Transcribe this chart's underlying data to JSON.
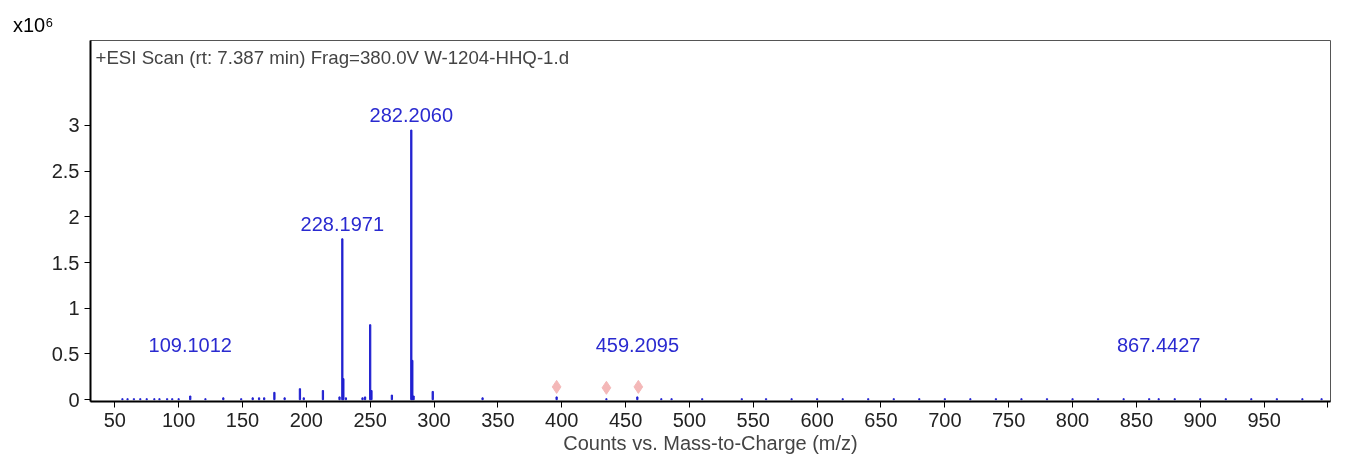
{
  "chart_data": {
    "type": "bar",
    "title": "+ESI Scan (rt: 7.387 min) Frag=380.0V W-1204-HHQ-1.d",
    "xlabel": "Counts vs. Mass-to-Charge (m/z)",
    "ylabel": "x10⁶",
    "xlim": [
      31,
      1002
    ],
    "ylim": [
      -0.02,
      3.93
    ],
    "xticks": [
      50,
      100,
      150,
      200,
      250,
      300,
      350,
      400,
      450,
      500,
      550,
      600,
      650,
      700,
      750,
      800,
      850,
      900,
      950,
      {
        "value": 1000,
        "label": null
      }
    ],
    "yticks": [
      0,
      0.5,
      1,
      1.5,
      2,
      2.5,
      3
    ],
    "grid": false,
    "annotations": [
      {
        "text": "109.1012",
        "x": 109.1012,
        "y": 0.04
      },
      {
        "text": "228.1971",
        "x": 228.1971,
        "y": 1.76
      },
      {
        "text": "282.2060",
        "x": 282.206,
        "y": 2.95
      },
      {
        "text": "459.2095",
        "x": 459.2095,
        "y": 0.03
      },
      {
        "text": "867.4427",
        "x": 867.4427,
        "y": 0.01
      }
    ],
    "series": [
      {
        "color": "#2020d0",
        "x": [
          56,
          60,
          65,
          70,
          75,
          81,
          85,
          91,
          95,
          100,
          109.1012,
          121,
          135,
          149,
          158,
          163,
          167,
          175,
          183,
          195,
          198,
          213,
          226,
          228.1971,
          229,
          231,
          244,
          246,
          250,
          251,
          267,
          282.206,
          283,
          284,
          299,
          338,
          396,
          435,
          459.2095,
          478,
          486,
          510,
          541,
          560,
          580,
          600,
          620,
          640,
          660,
          680,
          700,
          720,
          740,
          760,
          780,
          800,
          820,
          840,
          860,
          867.4427,
          880,
          900,
          920,
          940,
          960,
          980,
          995
        ],
        "values": [
          0.01,
          0.01,
          0.01,
          0.01,
          0.01,
          0.01,
          0.01,
          0.01,
          0.01,
          0.01,
          0.04,
          0.01,
          0.02,
          0.01,
          0.02,
          0.02,
          0.02,
          0.08,
          0.02,
          0.12,
          0.02,
          0.1,
          0.03,
          1.76,
          0.23,
          0.02,
          0.02,
          0.03,
          0.82,
          0.1,
          0.05,
          2.95,
          0.43,
          0.04,
          0.09,
          0.02,
          0.03,
          0.01,
          0.03,
          0.01,
          0.01,
          0.01,
          0.01,
          0.01,
          0.01,
          0.01,
          0.01,
          0.01,
          0.01,
          0.01,
          0.01,
          0.01,
          0.01,
          0.01,
          0.01,
          0.01,
          0.01,
          0.01,
          0.01,
          0.01,
          0.01,
          0.01,
          0.01,
          0.01,
          0.01,
          0.01,
          0.01
        ]
      },
      {
        "type": "scatter",
        "color": "#f4b8b8",
        "marker": "diamond",
        "x": [
          396,
          435,
          460
        ],
        "values": [
          0.14,
          0.13,
          0.14
        ]
      }
    ]
  }
}
